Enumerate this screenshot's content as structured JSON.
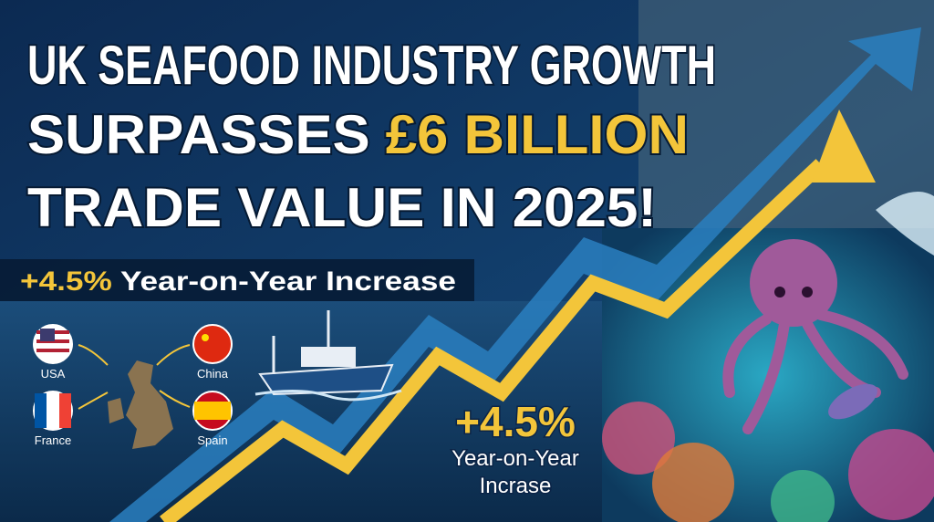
{
  "header": {
    "line1": "UK SEAFOOD INDUSTRY GROWTH",
    "line2": "SURPASSES",
    "highlight": "£6 BILLION",
    "line3": "TRADE VALUE IN 2025!"
  },
  "subtitle": {
    "figure": "+4.5%",
    "text": "Year-on-Year Increase"
  },
  "trade_map": {
    "countries": [
      {
        "label": "USA"
      },
      {
        "label": "China"
      },
      {
        "label": "France"
      },
      {
        "label": "Spain"
      }
    ]
  },
  "callout": {
    "figure": "+4.5%",
    "lines": [
      "Year-on-Year",
      "Incrase"
    ]
  }
}
